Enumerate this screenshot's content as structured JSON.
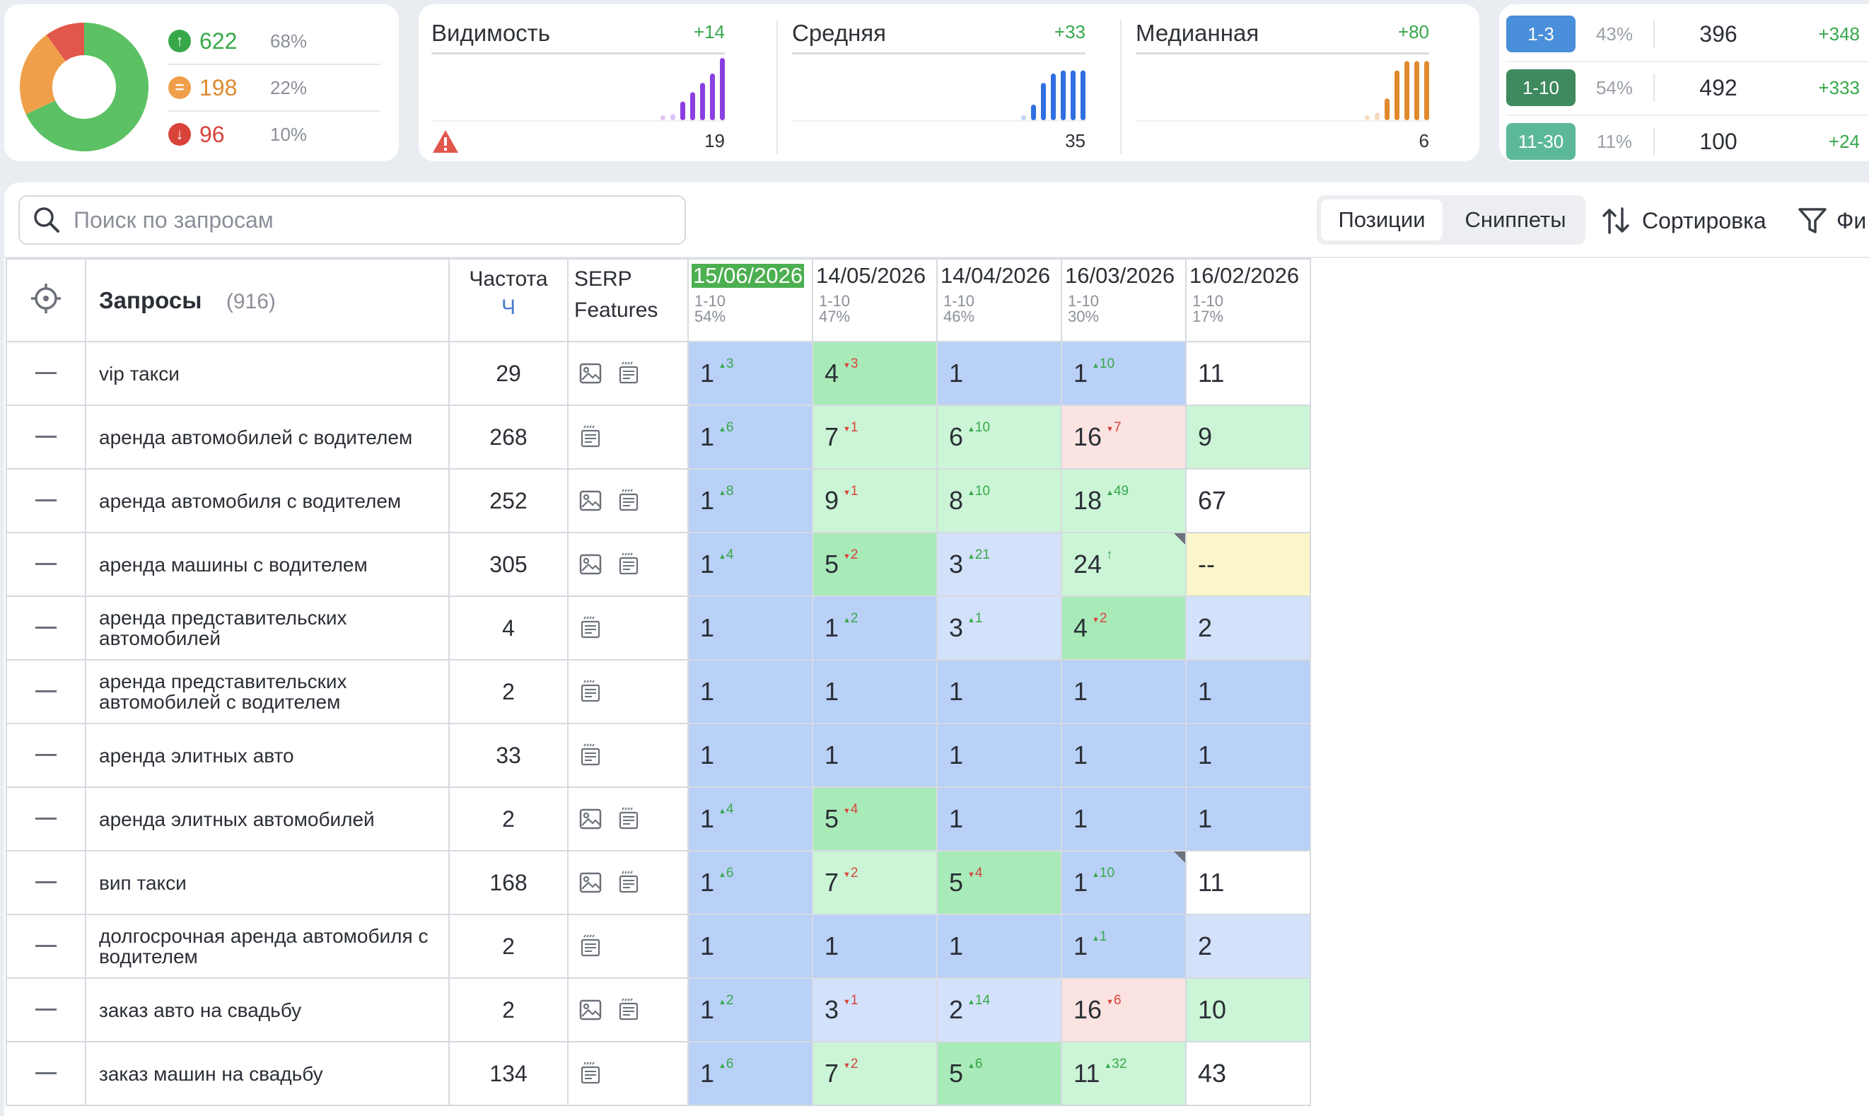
{
  "summary": {
    "up": {
      "count": "622",
      "pct": "68%"
    },
    "same": {
      "count": "198",
      "pct": "22%"
    },
    "down": {
      "count": "96",
      "pct": "10%"
    }
  },
  "metrics": [
    {
      "title": "Видимость",
      "delta": "+14",
      "value": "19",
      "color": "#8b3fe0",
      "bars": [
        0.08,
        0.1,
        0.3,
        0.45,
        0.6,
        0.75,
        1.0
      ]
    },
    {
      "title": "Средняя",
      "delta": "+33",
      "value": "35",
      "color": "#2f6fe0",
      "bars": [
        0.08,
        0.25,
        0.6,
        0.75,
        0.8,
        0.8,
        0.8
      ]
    },
    {
      "title": "Медианная",
      "delta": "+80",
      "value": "6",
      "color": "#e0892f",
      "bars": [
        0.08,
        0.12,
        0.35,
        0.8,
        0.95,
        0.95,
        0.95
      ]
    }
  ],
  "ranges": [
    {
      "label": "1-3",
      "pct": "43%",
      "count": "396",
      "delta": "+348",
      "color": "#4a8fd9"
    },
    {
      "label": "1-10",
      "pct": "54%",
      "count": "492",
      "delta": "+333",
      "color": "#3f8a5e"
    },
    {
      "label": "11-30",
      "pct": "11%",
      "count": "100",
      "delta": "+24",
      "color": "#5cb89a"
    }
  ],
  "toolbar": {
    "search_placeholder": "Поиск по запросам",
    "tab_positions": "Позиции",
    "tab_snippets": "Сниппеты",
    "sort_label": "Сортировка",
    "filter_label": "Фи"
  },
  "table": {
    "title": "Запросы",
    "count": "(916)",
    "freq_label": "Частота",
    "freq_sub": "Ч",
    "serp_label_1": "SERP",
    "serp_label_2": "Features",
    "dates": [
      {
        "date": "15/06/2026",
        "range": "1-10",
        "pct": "54%"
      },
      {
        "date": "14/05/2026",
        "range": "1-10",
        "pct": "47%"
      },
      {
        "date": "14/04/2026",
        "range": "1-10",
        "pct": "46%"
      },
      {
        "date": "16/03/2026",
        "range": "1-10",
        "pct": "30%"
      },
      {
        "date": "16/02/2026",
        "range": "1-10",
        "pct": "17%"
      }
    ],
    "rows": [
      {
        "query": "vip такси",
        "freq": "29",
        "serp": [
          "image",
          "snippet"
        ],
        "cells": [
          {
            "v": "1",
            "d": "3",
            "dir": "up",
            "bg": "blue"
          },
          {
            "v": "4",
            "d": "3",
            "dir": "down",
            "bg": "green"
          },
          {
            "v": "1",
            "d": "",
            "dir": "",
            "bg": "blue"
          },
          {
            "v": "1",
            "d": "10",
            "dir": "up",
            "bg": "blue"
          },
          {
            "v": "11",
            "d": "",
            "dir": "",
            "bg": "white"
          }
        ]
      },
      {
        "query": "аренда автомобилей с водителем",
        "freq": "268",
        "serp": [
          "snippet"
        ],
        "cells": [
          {
            "v": "1",
            "d": "6",
            "dir": "up",
            "bg": "blue"
          },
          {
            "v": "7",
            "d": "1",
            "dir": "down",
            "bg": "lgreen"
          },
          {
            "v": "6",
            "d": "10",
            "dir": "up",
            "bg": "lgreen"
          },
          {
            "v": "16",
            "d": "7",
            "dir": "down",
            "bg": "pink"
          },
          {
            "v": "9",
            "d": "",
            "dir": "",
            "bg": "lgreen"
          }
        ]
      },
      {
        "query": "аренда автомобиля с водителем",
        "freq": "252",
        "serp": [
          "image",
          "snippet"
        ],
        "cells": [
          {
            "v": "1",
            "d": "8",
            "dir": "up",
            "bg": "blue"
          },
          {
            "v": "9",
            "d": "1",
            "dir": "down",
            "bg": "lgreen"
          },
          {
            "v": "8",
            "d": "10",
            "dir": "up",
            "bg": "lgreen"
          },
          {
            "v": "18",
            "d": "49",
            "dir": "up",
            "bg": "lgreen"
          },
          {
            "v": "67",
            "d": "",
            "dir": "",
            "bg": "white"
          }
        ]
      },
      {
        "query": "аренда машины с водителем",
        "freq": "305",
        "serp": [
          "image",
          "snippet"
        ],
        "cells": [
          {
            "v": "1",
            "d": "4",
            "dir": "up",
            "bg": "blue"
          },
          {
            "v": "5",
            "d": "2",
            "dir": "down",
            "bg": "green"
          },
          {
            "v": "3",
            "d": "21",
            "dir": "up",
            "bg": "lblue"
          },
          {
            "v": "24",
            "d": "↑",
            "dir": "up",
            "bg": "lgreen",
            "corner": true
          },
          {
            "v": "--",
            "d": "",
            "dir": "",
            "bg": "yellow"
          }
        ]
      },
      {
        "query": "аренда представительских автомобилей",
        "freq": "4",
        "serp": [
          "snippet"
        ],
        "cells": [
          {
            "v": "1",
            "d": "",
            "dir": "",
            "bg": "blue"
          },
          {
            "v": "1",
            "d": "2",
            "dir": "up",
            "bg": "blue"
          },
          {
            "v": "3",
            "d": "1",
            "dir": "up",
            "bg": "lblue"
          },
          {
            "v": "4",
            "d": "2",
            "dir": "down",
            "bg": "green"
          },
          {
            "v": "2",
            "d": "",
            "dir": "",
            "bg": "lblue"
          }
        ]
      },
      {
        "query": "аренда представительских автомобилей с водителем",
        "freq": "2",
        "serp": [
          "snippet"
        ],
        "cells": [
          {
            "v": "1",
            "d": "",
            "dir": "",
            "bg": "blue"
          },
          {
            "v": "1",
            "d": "",
            "dir": "",
            "bg": "blue"
          },
          {
            "v": "1",
            "d": "",
            "dir": "",
            "bg": "blue"
          },
          {
            "v": "1",
            "d": "",
            "dir": "",
            "bg": "blue"
          },
          {
            "v": "1",
            "d": "",
            "dir": "",
            "bg": "blue"
          }
        ]
      },
      {
        "query": "аренда элитных авто",
        "freq": "33",
        "serp": [
          "snippet"
        ],
        "cells": [
          {
            "v": "1",
            "d": "",
            "dir": "",
            "bg": "blue"
          },
          {
            "v": "1",
            "d": "",
            "dir": "",
            "bg": "blue"
          },
          {
            "v": "1",
            "d": "",
            "dir": "",
            "bg": "blue"
          },
          {
            "v": "1",
            "d": "",
            "dir": "",
            "bg": "blue"
          },
          {
            "v": "1",
            "d": "",
            "dir": "",
            "bg": "blue"
          }
        ]
      },
      {
        "query": "аренда элитных автомобилей",
        "freq": "2",
        "serp": [
          "image",
          "snippet"
        ],
        "cells": [
          {
            "v": "1",
            "d": "4",
            "dir": "up",
            "bg": "blue"
          },
          {
            "v": "5",
            "d": "4",
            "dir": "down",
            "bg": "green"
          },
          {
            "v": "1",
            "d": "",
            "dir": "",
            "bg": "blue"
          },
          {
            "v": "1",
            "d": "",
            "dir": "",
            "bg": "blue"
          },
          {
            "v": "1",
            "d": "",
            "dir": "",
            "bg": "blue"
          }
        ]
      },
      {
        "query": "вип такси",
        "freq": "168",
        "serp": [
          "image",
          "snippet"
        ],
        "cells": [
          {
            "v": "1",
            "d": "6",
            "dir": "up",
            "bg": "blue"
          },
          {
            "v": "7",
            "d": "2",
            "dir": "down",
            "bg": "lgreen"
          },
          {
            "v": "5",
            "d": "4",
            "dir": "down",
            "bg": "green"
          },
          {
            "v": "1",
            "d": "10",
            "dir": "up",
            "bg": "blue",
            "corner": true
          },
          {
            "v": "11",
            "d": "",
            "dir": "",
            "bg": "white"
          }
        ]
      },
      {
        "query": "долгосрочная аренда автомобиля с водителем",
        "freq": "2",
        "serp": [
          "snippet"
        ],
        "cells": [
          {
            "v": "1",
            "d": "",
            "dir": "",
            "bg": "blue"
          },
          {
            "v": "1",
            "d": "",
            "dir": "",
            "bg": "blue"
          },
          {
            "v": "1",
            "d": "",
            "dir": "",
            "bg": "blue"
          },
          {
            "v": "1",
            "d": "1",
            "dir": "up",
            "bg": "blue"
          },
          {
            "v": "2",
            "d": "",
            "dir": "",
            "bg": "lblue"
          }
        ]
      },
      {
        "query": "заказ авто на свадьбу",
        "freq": "2",
        "serp": [
          "image",
          "snippet"
        ],
        "cells": [
          {
            "v": "1",
            "d": "2",
            "dir": "up",
            "bg": "blue"
          },
          {
            "v": "3",
            "d": "1",
            "dir": "down",
            "bg": "lblue"
          },
          {
            "v": "2",
            "d": "14",
            "dir": "up",
            "bg": "lblue"
          },
          {
            "v": "16",
            "d": "6",
            "dir": "down",
            "bg": "pink"
          },
          {
            "v": "10",
            "d": "",
            "dir": "",
            "bg": "lgreen"
          }
        ]
      },
      {
        "query": "заказ машин на свадьбу",
        "freq": "134",
        "serp": [
          "snippet"
        ],
        "cells": [
          {
            "v": "1",
            "d": "6",
            "dir": "up",
            "bg": "blue"
          },
          {
            "v": "7",
            "d": "2",
            "dir": "down",
            "bg": "lgreen"
          },
          {
            "v": "5",
            "d": "6",
            "dir": "up",
            "bg": "green"
          },
          {
            "v": "11",
            "d": "32",
            "dir": "up",
            "bg": "lgreen"
          },
          {
            "v": "43",
            "d": "",
            "dir": "",
            "bg": "white"
          }
        ]
      }
    ]
  }
}
